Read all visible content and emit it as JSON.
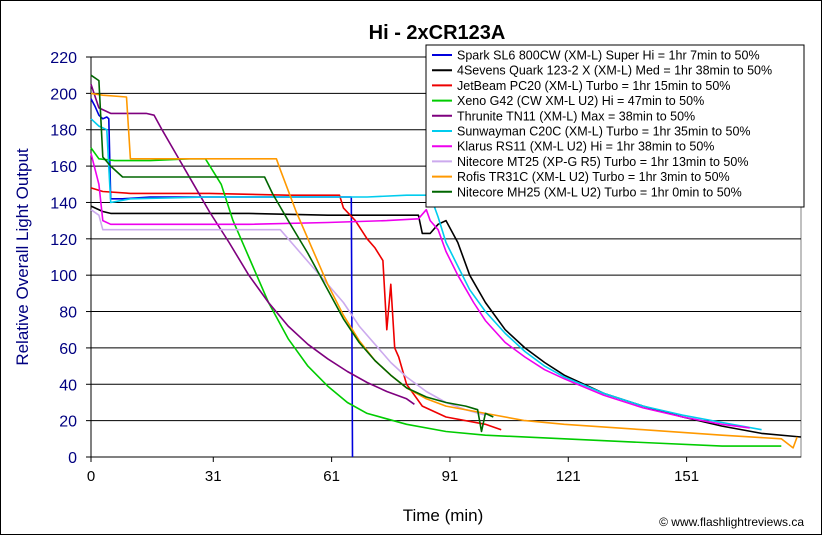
{
  "chart_data": {
    "type": "line",
    "title": "Hi - 2xCR123A",
    "xlabel": "Time (min)",
    "ylabel": "Relative Overall Light Output",
    "credit": "© www.flashlightreviews.ca",
    "xlim": [
      0,
      180
    ],
    "ylim": [
      0,
      220
    ],
    "x_ticks": [
      0,
      31,
      61,
      91,
      121,
      151
    ],
    "y_ticks": [
      0,
      20,
      40,
      60,
      80,
      100,
      120,
      140,
      160,
      180,
      200,
      220
    ],
    "grid": true,
    "legend_position": "top-right",
    "series": [
      {
        "name": "Spark SL6 800CW (XM-L) Super Hi = 1hr 7min to 50%",
        "color": "#0000dd",
        "points": [
          [
            0,
            197
          ],
          [
            1,
            193
          ],
          [
            2,
            188
          ],
          [
            3,
            186
          ],
          [
            4,
            187
          ],
          [
            4.5,
            186
          ],
          [
            5,
            142
          ],
          [
            8,
            142
          ],
          [
            15,
            143
          ],
          [
            30,
            143
          ],
          [
            45,
            143
          ],
          [
            60,
            143
          ],
          [
            66,
            143
          ],
          [
            66.3,
            0
          ]
        ]
      },
      {
        "name": "4Sevens Quark 123-2 X (XM-L) Med = 1hr 38min to 50%",
        "color": "#000000",
        "points": [
          [
            0,
            138
          ],
          [
            3,
            135
          ],
          [
            5,
            134
          ],
          [
            20,
            134
          ],
          [
            40,
            134
          ],
          [
            60,
            133
          ],
          [
            80,
            133
          ],
          [
            83,
            133
          ],
          [
            84,
            123
          ],
          [
            86,
            123
          ],
          [
            88,
            128
          ],
          [
            90,
            130
          ],
          [
            93,
            118
          ],
          [
            96,
            100
          ],
          [
            100,
            85
          ],
          [
            105,
            70
          ],
          [
            110,
            60
          ],
          [
            115,
            52
          ],
          [
            120,
            45
          ],
          [
            130,
            35
          ],
          [
            140,
            28
          ],
          [
            150,
            22
          ],
          [
            160,
            17
          ],
          [
            170,
            13
          ],
          [
            180,
            11
          ]
        ]
      },
      {
        "name": "JetBeam PC20 (XM-L) Turbo = 1hr 15min to 50%",
        "color": "#ee0000",
        "points": [
          [
            0,
            148
          ],
          [
            3,
            146
          ],
          [
            10,
            145
          ],
          [
            30,
            145
          ],
          [
            50,
            144
          ],
          [
            63,
            144
          ],
          [
            64,
            137
          ],
          [
            67,
            130
          ],
          [
            70,
            120
          ],
          [
            72,
            115
          ],
          [
            74,
            108
          ],
          [
            75,
            70
          ],
          [
            76,
            95
          ],
          [
            77,
            60
          ],
          [
            78,
            55
          ],
          [
            80,
            40
          ],
          [
            84,
            28
          ],
          [
            90,
            22
          ],
          [
            100,
            18
          ],
          [
            104,
            15
          ]
        ]
      },
      {
        "name": "Xeno G42 (CW XM-L U2) Hi = 47min to 50%",
        "color": "#00cc00",
        "points": [
          [
            0,
            170
          ],
          [
            2,
            164
          ],
          [
            6,
            163
          ],
          [
            15,
            163
          ],
          [
            25,
            164
          ],
          [
            29,
            164
          ],
          [
            33,
            150
          ],
          [
            36,
            130
          ],
          [
            40,
            110
          ],
          [
            45,
            85
          ],
          [
            50,
            65
          ],
          [
            55,
            50
          ],
          [
            60,
            39
          ],
          [
            65,
            30
          ],
          [
            70,
            24
          ],
          [
            80,
            18
          ],
          [
            90,
            14
          ],
          [
            100,
            12
          ],
          [
            120,
            10
          ],
          [
            140,
            8
          ],
          [
            160,
            6
          ],
          [
            175,
            6
          ]
        ]
      },
      {
        "name": "Thrunite TN11 (XM-L) Max = 38min to 50%",
        "color": "#7f007f",
        "points": [
          [
            0,
            205
          ],
          [
            2,
            192
          ],
          [
            5,
            189
          ],
          [
            10,
            189
          ],
          [
            14,
            189
          ],
          [
            16,
            188
          ],
          [
            18,
            180
          ],
          [
            22,
            165
          ],
          [
            26,
            150
          ],
          [
            30,
            135
          ],
          [
            35,
            118
          ],
          [
            40,
            100
          ],
          [
            45,
            85
          ],
          [
            50,
            72
          ],
          [
            55,
            62
          ],
          [
            60,
            54
          ],
          [
            65,
            47
          ],
          [
            70,
            41
          ],
          [
            75,
            36
          ],
          [
            80,
            32
          ],
          [
            82,
            29
          ]
        ]
      },
      {
        "name": "Sunwayman C20C (XM-L) Turbo = 1hr 35min to 50%",
        "color": "#00ccee",
        "points": [
          [
            0,
            186
          ],
          [
            2,
            182
          ],
          [
            4,
            180
          ],
          [
            5,
            140
          ],
          [
            10,
            142
          ],
          [
            30,
            143
          ],
          [
            50,
            143
          ],
          [
            70,
            143
          ],
          [
            80,
            144
          ],
          [
            86,
            144
          ],
          [
            88,
            132
          ],
          [
            90,
            118
          ],
          [
            93,
            105
          ],
          [
            96,
            92
          ],
          [
            100,
            80
          ],
          [
            105,
            68
          ],
          [
            110,
            58
          ],
          [
            115,
            50
          ],
          [
            120,
            44
          ],
          [
            130,
            35
          ],
          [
            140,
            28
          ],
          [
            150,
            23
          ],
          [
            160,
            19
          ],
          [
            170,
            15
          ]
        ]
      },
      {
        "name": "Klarus RS11 (XM-L U2) Hi = 1hr 38min to 50%",
        "color": "#ee00ee",
        "points": [
          [
            0,
            167
          ],
          [
            2,
            150
          ],
          [
            3,
            130
          ],
          [
            5,
            128
          ],
          [
            20,
            128
          ],
          [
            40,
            128
          ],
          [
            60,
            129
          ],
          [
            75,
            130
          ],
          [
            83,
            131
          ],
          [
            85,
            136
          ],
          [
            86,
            130
          ],
          [
            88,
            125
          ],
          [
            90,
            113
          ],
          [
            93,
            100
          ],
          [
            97,
            85
          ],
          [
            100,
            75
          ],
          [
            105,
            63
          ],
          [
            110,
            55
          ],
          [
            115,
            48
          ],
          [
            120,
            43
          ],
          [
            130,
            34
          ],
          [
            140,
            27
          ],
          [
            150,
            22
          ],
          [
            160,
            18
          ],
          [
            167,
            16
          ]
        ]
      },
      {
        "name": "Nitecore MT25 (XP-G R5) Turbo = 1hr 13min to 50%",
        "color": "#ccaaee",
        "points": [
          [
            0,
            136
          ],
          [
            2,
            133
          ],
          [
            3,
            125
          ],
          [
            10,
            125
          ],
          [
            30,
            125
          ],
          [
            48,
            125
          ],
          [
            52,
            115
          ],
          [
            56,
            105
          ],
          [
            60,
            95
          ],
          [
            64,
            85
          ],
          [
            68,
            72
          ],
          [
            72,
            62
          ],
          [
            76,
            52
          ],
          [
            80,
            44
          ],
          [
            85,
            36
          ],
          [
            90,
            30
          ],
          [
            95,
            26
          ],
          [
            100,
            23
          ]
        ]
      },
      {
        "name": "Rofis TR31C (XM-L U2) Turbo = 1hr 3min to 50%",
        "color": "#ff9900",
        "points": [
          [
            0,
            200
          ],
          [
            3,
            199
          ],
          [
            9,
            198
          ],
          [
            10,
            164
          ],
          [
            15,
            164
          ],
          [
            30,
            164
          ],
          [
            47,
            164
          ],
          [
            48,
            158
          ],
          [
            52,
            135
          ],
          [
            56,
            115
          ],
          [
            60,
            95
          ],
          [
            64,
            78
          ],
          [
            68,
            64
          ],
          [
            72,
            53
          ],
          [
            76,
            45
          ],
          [
            80,
            38
          ],
          [
            85,
            32
          ],
          [
            90,
            28
          ],
          [
            100,
            24
          ],
          [
            110,
            20
          ],
          [
            120,
            18
          ],
          [
            140,
            15
          ],
          [
            160,
            12
          ],
          [
            175,
            10
          ],
          [
            178,
            5
          ],
          [
            179,
            11
          ]
        ]
      },
      {
        "name": "Nitecore MH25 (XM-L U2) Turbo = 1hr 0min to 50%",
        "color": "#006600",
        "points": [
          [
            0,
            210
          ],
          [
            2,
            207
          ],
          [
            3,
            165
          ],
          [
            5,
            160
          ],
          [
            8,
            154
          ],
          [
            15,
            154
          ],
          [
            25,
            154
          ],
          [
            35,
            154
          ],
          [
            44,
            154
          ],
          [
            46,
            145
          ],
          [
            50,
            130
          ],
          [
            55,
            112
          ],
          [
            60,
            92
          ],
          [
            64,
            76
          ],
          [
            68,
            63
          ],
          [
            72,
            53
          ],
          [
            76,
            45
          ],
          [
            80,
            38
          ],
          [
            85,
            33
          ],
          [
            90,
            30
          ],
          [
            95,
            28
          ],
          [
            98,
            26
          ],
          [
            99,
            14
          ],
          [
            100,
            24
          ],
          [
            102,
            22
          ]
        ]
      }
    ]
  }
}
